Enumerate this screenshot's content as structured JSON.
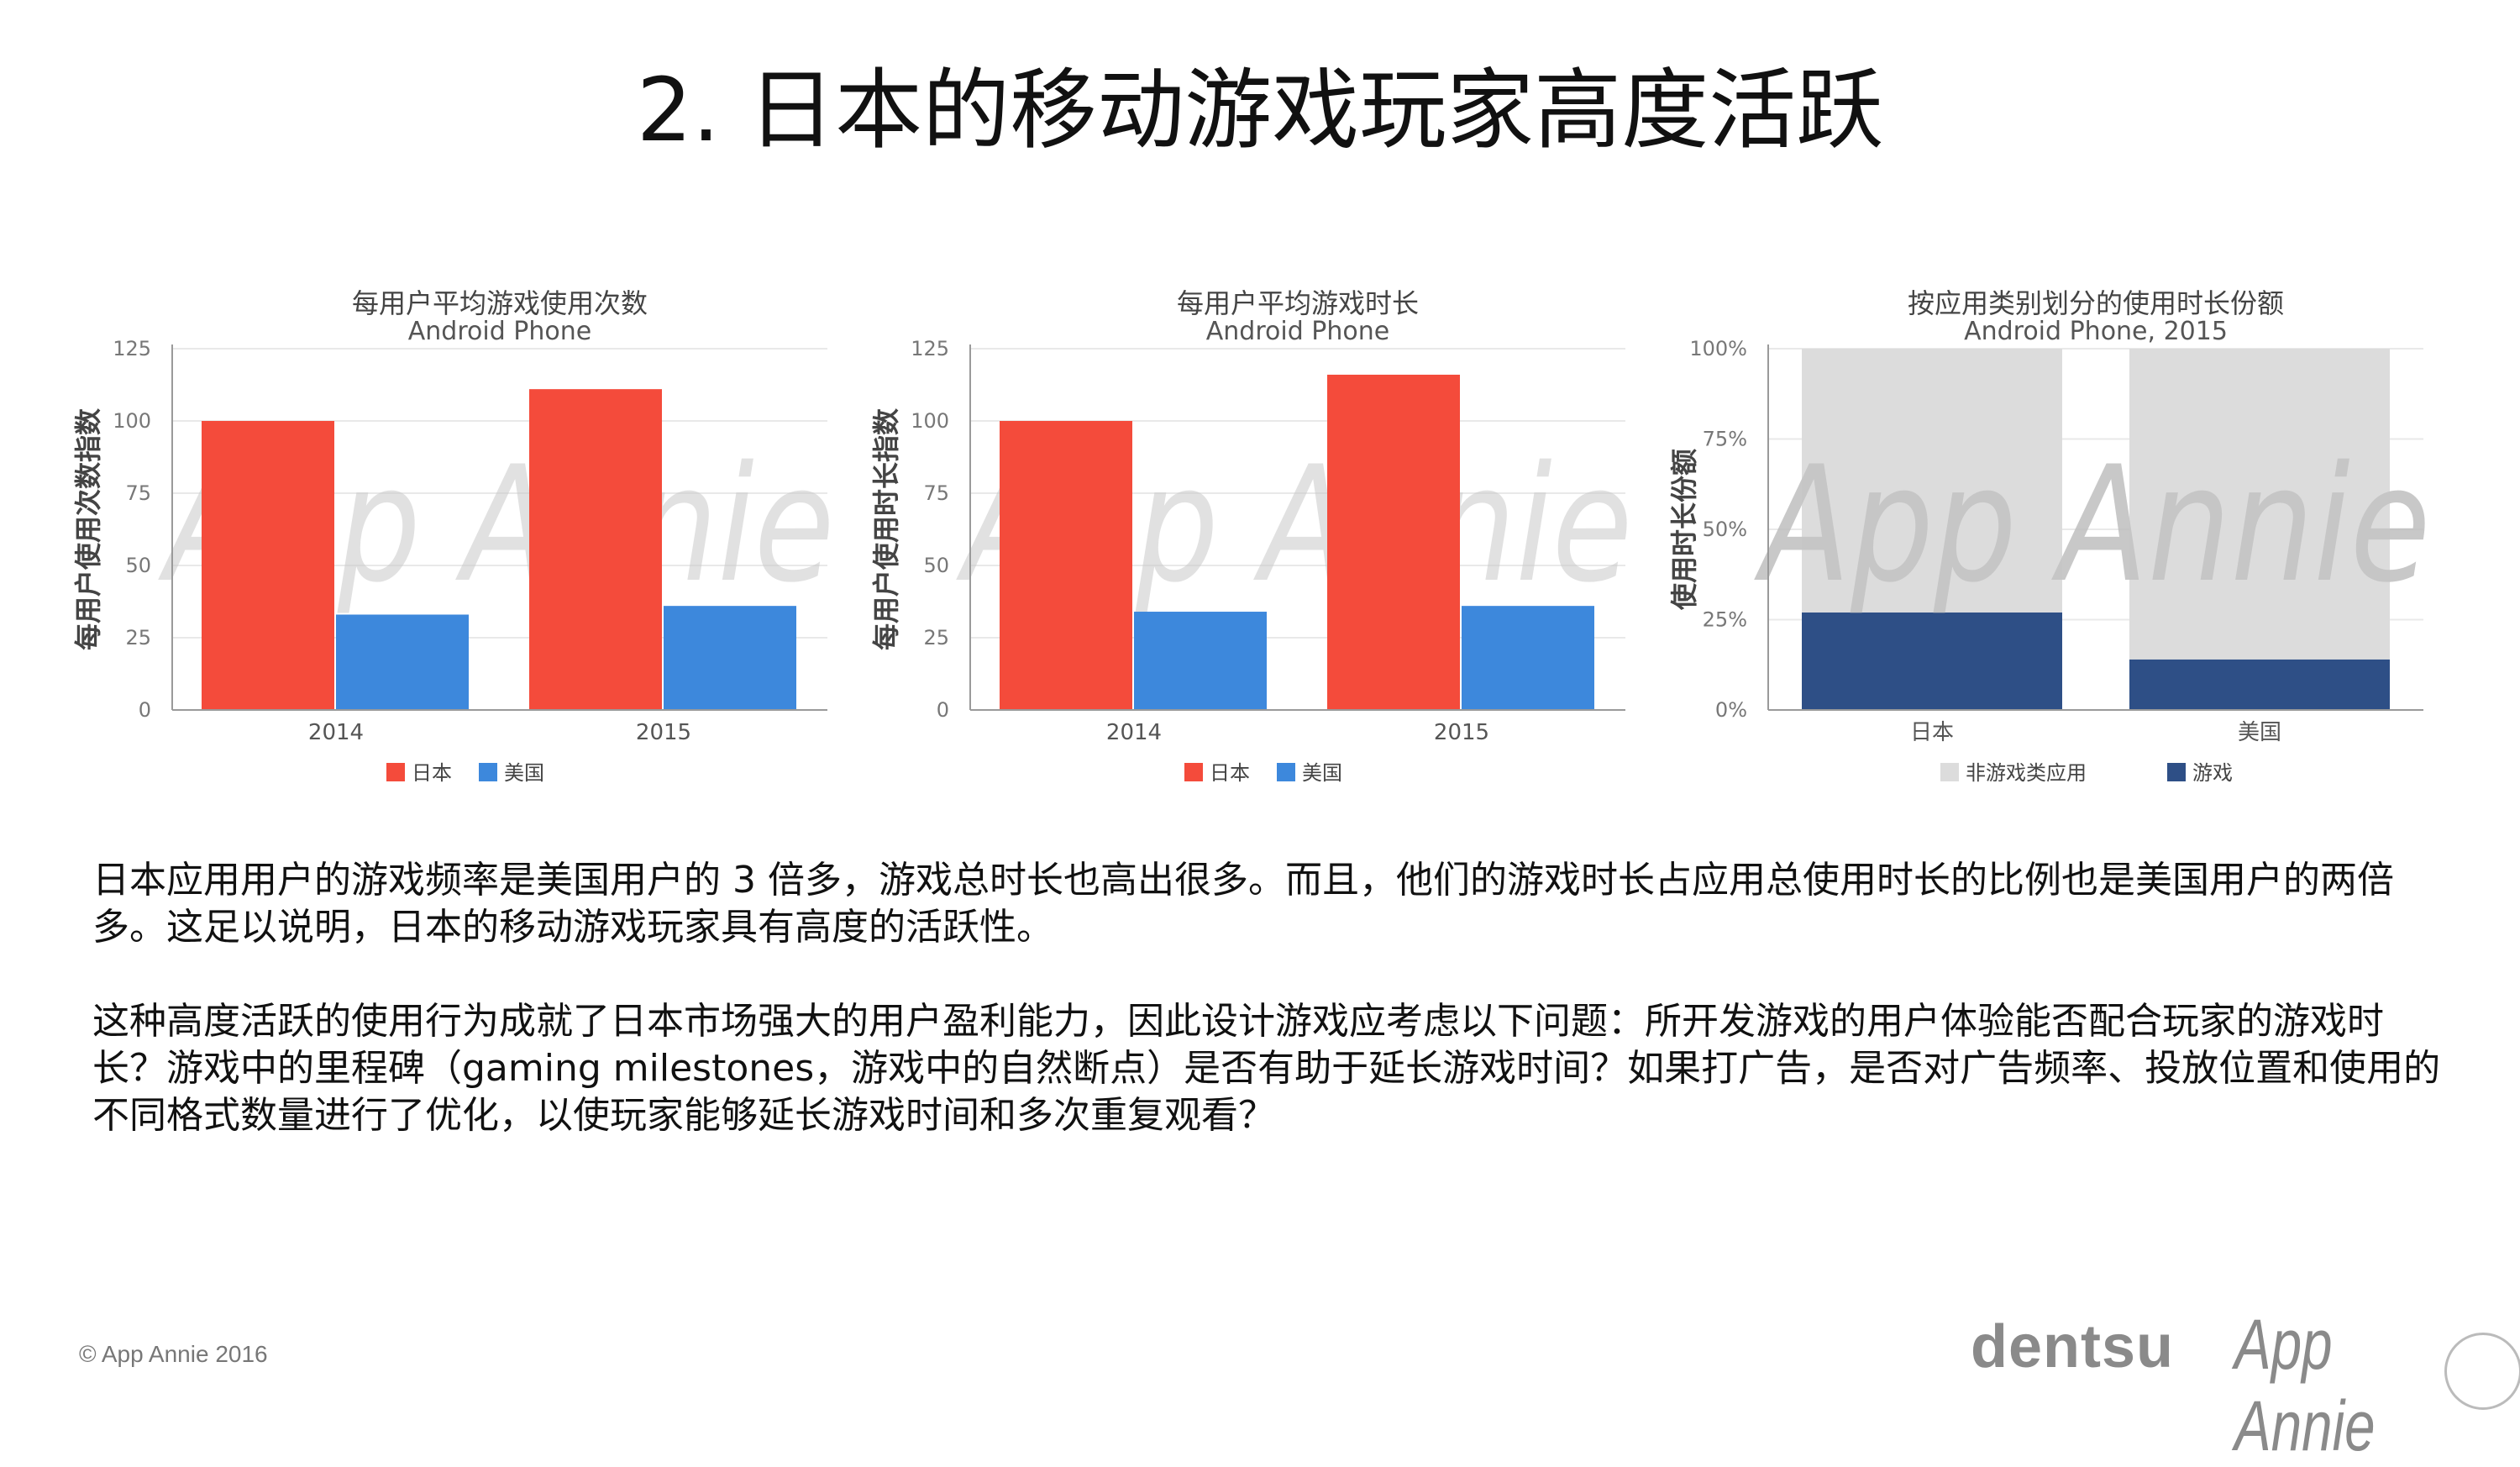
{
  "title": "2. 日本的移动游戏玩家高度活跃",
  "watermark": "App Annie",
  "colors": {
    "japan": "#f44b3b",
    "usa": "#3d88dc",
    "nongame": "#dcdcdc",
    "game": "#2e4f86",
    "axis": "#9a9a9a",
    "grid": "#e9e9e9",
    "watermark": "#c8c8c8"
  },
  "chart_data": [
    {
      "type": "bar",
      "title": "每用户平均游戏使用次数",
      "subtitle": "Android Phone",
      "ylabel": "每用户使用次数指数",
      "categories": [
        "2014",
        "2015"
      ],
      "yticks": [
        "0",
        "25",
        "50",
        "75",
        "100",
        "125"
      ],
      "ylim": [
        0,
        125
      ],
      "series": [
        {
          "name": "日本",
          "values": [
            100,
            111
          ]
        },
        {
          "name": "美国",
          "values": [
            33,
            36
          ]
        }
      ],
      "legend": "bottom"
    },
    {
      "type": "bar",
      "title": "每用户平均游戏时长",
      "subtitle": "Android Phone",
      "ylabel": "每用户使用时长指数",
      "categories": [
        "2014",
        "2015"
      ],
      "yticks": [
        "0",
        "25",
        "50",
        "75",
        "100",
        "125"
      ],
      "ylim": [
        0,
        125
      ],
      "series": [
        {
          "name": "日本",
          "values": [
            100,
            116
          ]
        },
        {
          "name": "美国",
          "values": [
            34,
            36
          ]
        }
      ],
      "legend": "bottom"
    },
    {
      "type": "bar",
      "stacked": true,
      "title": "按应用类别划分的使用时长份额",
      "subtitle": "Android Phone, 2015",
      "ylabel": "使用时长份额",
      "categories": [
        "日本",
        "美国"
      ],
      "yticks": [
        "0%",
        "25%",
        "50%",
        "75%",
        "100%"
      ],
      "ylim": [
        0,
        100
      ],
      "series": [
        {
          "name": "游戏",
          "values": [
            27,
            14
          ]
        },
        {
          "name": "非游戏类应用",
          "values": [
            73,
            86
          ]
        }
      ],
      "legend_order": [
        "非游戏类应用",
        "游戏"
      ],
      "legend": "bottom"
    }
  ],
  "paragraphs": [
    "日本应用用户的游戏频率是美国用户的 3 倍多，游戏总时长也高出很多。而且，他们的游戏时长占应用总使用时长的比例也是美国用户的两倍多。这足以说明，日本的移动游戏玩家具有高度的活跃性。",
    "这种高度活跃的使用行为成就了日本市场强大的用户盈利能力，因此设计游戏应考虑以下问题：所开发游戏的用户体验能否配合玩家的游戏时长？游戏中的里程碑（gaming milestones，游戏中的自然断点）是否有助于延长游戏时间？如果打广告，是否对广告频率、投放位置和使用的不同格式数量进行了优化，以使玩家能够延长游戏时间和多次重复观看？"
  ],
  "footer": {
    "copyright": "© App Annie 2016",
    "logo_dentsu": "dentsu",
    "logo_appannie": "App Annie"
  }
}
